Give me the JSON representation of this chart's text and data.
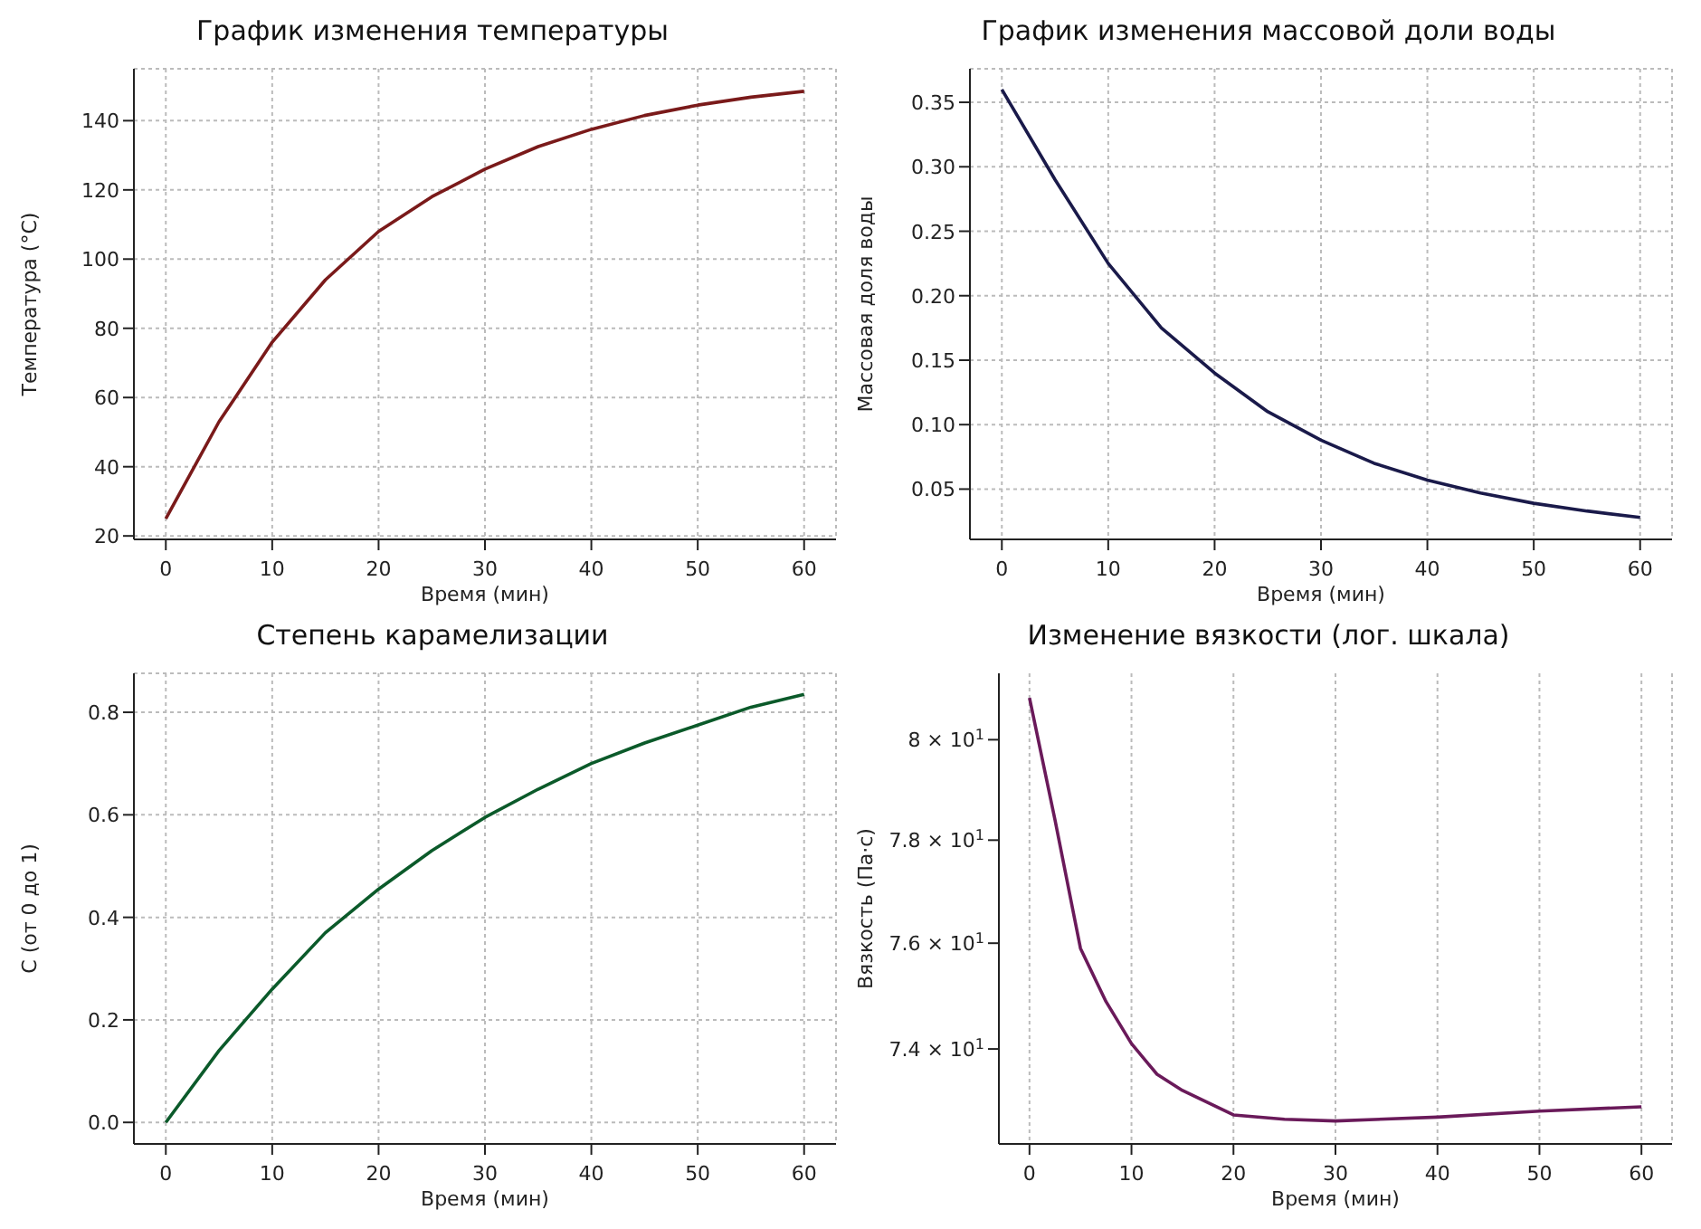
{
  "chart_data": [
    {
      "type": "line",
      "title": "График изменения температуры",
      "xlabel": "Время (мин)",
      "ylabel": "Температура (°C)",
      "x": [
        0,
        5,
        10,
        15,
        20,
        25,
        30,
        35,
        40,
        45,
        50,
        55,
        60
      ],
      "series": [
        {
          "color": "#7a1a1a",
          "values": [
            25,
            53,
            76,
            94,
            108,
            118,
            126,
            132.5,
            137.5,
            141.5,
            144.5,
            146.8,
            148.5
          ]
        }
      ],
      "xlim": [
        -3,
        63
      ],
      "xticks": [
        0,
        10,
        20,
        30,
        40,
        50,
        60
      ],
      "ylim": [
        19,
        155
      ],
      "yticks": [
        20,
        40,
        60,
        80,
        100,
        120,
        140
      ],
      "grid": true
    },
    {
      "type": "line",
      "title": "График изменения массовой доли воды",
      "xlabel": "Время (мин)",
      "ylabel": "Массовая доля воды",
      "x": [
        0,
        5,
        10,
        15,
        20,
        25,
        30,
        35,
        40,
        45,
        50,
        55,
        60
      ],
      "series": [
        {
          "color": "#1a1a4a",
          "values": [
            0.36,
            0.29,
            0.225,
            0.175,
            0.14,
            0.11,
            0.088,
            0.07,
            0.057,
            0.047,
            0.039,
            0.033,
            0.028
          ]
        }
      ],
      "xlim": [
        -3,
        63
      ],
      "xticks": [
        0,
        10,
        20,
        30,
        40,
        50,
        60
      ],
      "ylim": [
        0.011,
        0.376
      ],
      "yticks": [
        {
          "value": 0.05,
          "label": "0.05"
        },
        {
          "value": 0.1,
          "label": "0.10"
        },
        {
          "value": 0.15,
          "label": "0.15"
        },
        {
          "value": 0.2,
          "label": "0.20"
        },
        {
          "value": 0.25,
          "label": "0.25"
        },
        {
          "value": 0.3,
          "label": "0.30"
        },
        {
          "value": 0.35,
          "label": "0.35"
        }
      ],
      "grid": true
    },
    {
      "type": "line",
      "title": "Степень карамелизации",
      "xlabel": "Время (мин)",
      "ylabel": "C (от 0 до 1)",
      "x": [
        0,
        5,
        10,
        15,
        20,
        25,
        30,
        35,
        40,
        45,
        50,
        55,
        60
      ],
      "series": [
        {
          "color": "#0b5a2a",
          "values": [
            0,
            0.14,
            0.26,
            0.37,
            0.455,
            0.53,
            0.595,
            0.65,
            0.7,
            0.74,
            0.775,
            0.81,
            0.835
          ]
        }
      ],
      "xlim": [
        -3,
        63
      ],
      "xticks": [
        0,
        10,
        20,
        30,
        40,
        50,
        60
      ],
      "ylim": [
        -0.042,
        0.876
      ],
      "yticks": [
        {
          "value": 0,
          "label": "0.0"
        },
        0.2,
        0.4,
        0.6,
        0.8
      ],
      "grid": true
    },
    {
      "type": "line",
      "title": "Изменение вязкости (лог. шкала)",
      "xlabel": "Время (мин)",
      "ylabel": "Вязкость (Па·с)",
      "x": [
        0,
        2.5,
        5,
        7.5,
        10,
        12.5,
        15,
        20,
        25,
        30,
        40,
        50,
        60
      ],
      "series": [
        {
          "color": "#6a1a5a",
          "values": [
            80.85,
            78.4,
            75.9,
            74.89,
            74.1,
            73.53,
            73.23,
            72.78,
            72.7,
            72.67,
            72.74,
            72.85,
            72.93
          ]
        }
      ],
      "xlim": [
        -3,
        63
      ],
      "xticks": [
        0,
        10,
        20,
        30,
        40,
        50,
        60
      ],
      "ylim": [
        72.25,
        81.35
      ],
      "yticks": [
        {
          "value": 74,
          "label": "7.4 × 10$^{1}$"
        },
        {
          "value": 76,
          "label": "7.6 × 10$^{1}$"
        },
        {
          "value": 78,
          "label": "7.8 × 10$^{1}$"
        },
        {
          "value": 80,
          "label": "8 × 10$^{1}$"
        }
      ],
      "log": "y",
      "grid": "x"
    }
  ]
}
